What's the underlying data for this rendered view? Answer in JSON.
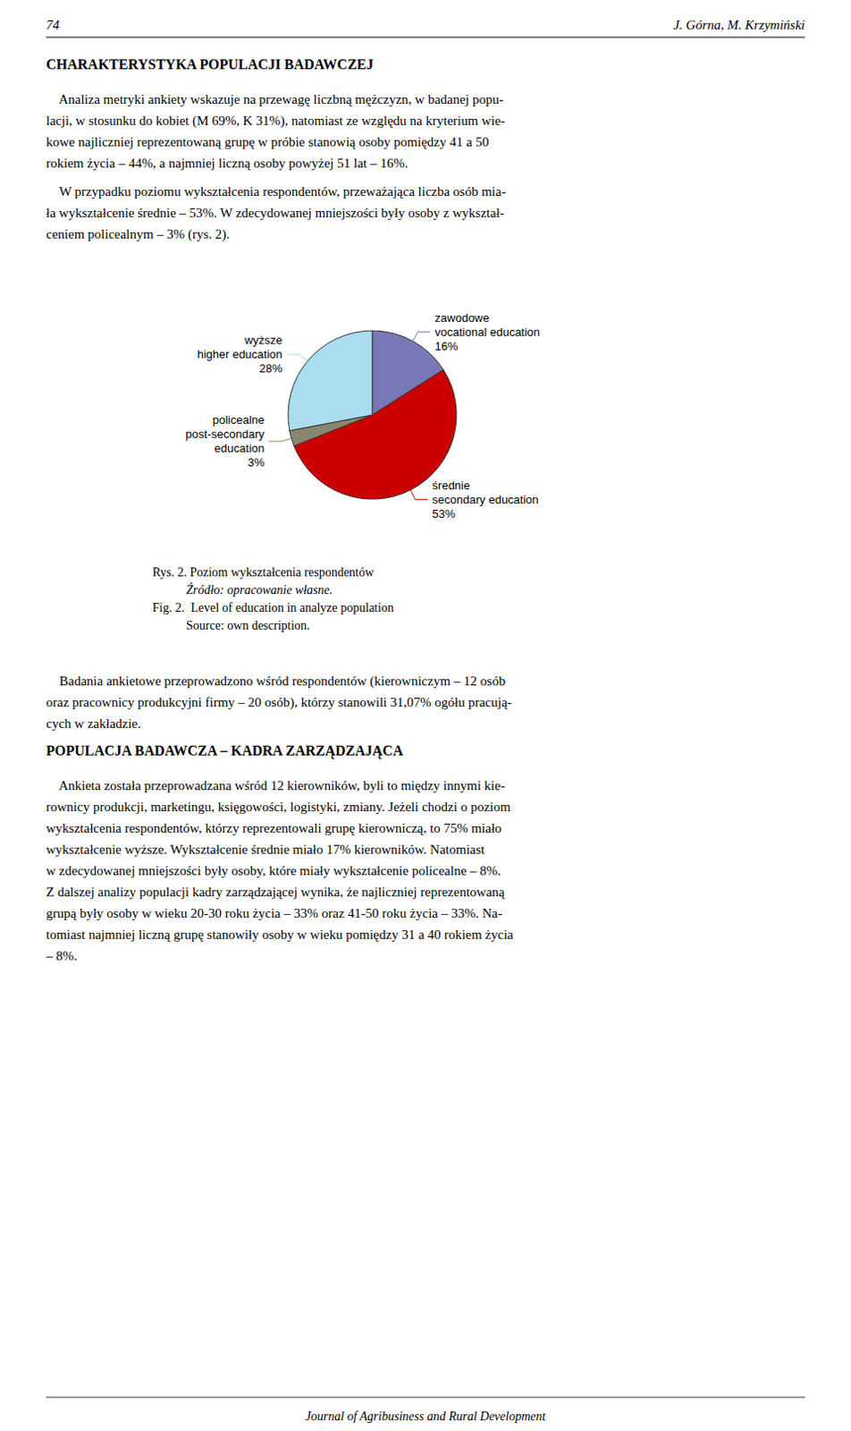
{
  "chart_data": {
    "type": "pie",
    "categories": [
      "zawodowe\nvocational education",
      "średnie\nsecondary education",
      "policealne\npost-secondary\neducation",
      "wyższe\nhigher education"
    ],
    "values": [
      16,
      53,
      3,
      28
    ],
    "value_labels": [
      "16%",
      "53%",
      "3%",
      "28%"
    ],
    "colors": [
      "#7878b8",
      "#cc0000",
      "#888870",
      "#aaddee"
    ],
    "data_labels": true,
    "legend": false,
    "annotations": [
      "74",
      "J. Górna, M. Krzymiński",
      "CHARAKTERYSTYKA POPULACJI BADAWCZEJ",
      "    Analiza metryki ankiety wskazuje na przewagę liczbną mężczyzn, w badanej popu-",
      "lacji, w stosunku do kobiet (M 69%, K 31%), natomiast ze względu na kryterium wie-",
      "kowe najliczniej reprezentowaną grupę w próbie stanowią osoby pomiędzy 41 a 50",
      "rokiem życia – 44%, a najmniej liczną osoby powyżej 51 lat – 16%.",
      "    W przypadku poziomu wykształcenia respondentów, przeważająca liczba osób mia-",
      "ła wykształcenie średnie – 53%. W zdecydowanej mniejszości były osoby z wykształ-",
      "ceniem policealnym – 3% (rys. 2).",
      "Rys. 2. Poziom wykształcenia respondentów",
      "Źródło: opracowanie własne.",
      "Fig. 2.  Level of education in analyze population",
      "Source: own description.",
      "    Badania ankietowe przeprowadzono wśród respondentów (kierowniczym – 12 osób",
      "oraz pracownicy produkcyjni firmy – 20 osób), którzy stanowili 31,07% ogółu pracują-",
      "cych w zakładzie.",
      "POPULACJA BADAWCZA – KADRA ZARZĄDZAJĄCA",
      "    Ankieta została przeprowadzana wśród 12 kierowników, byli to między innymi kie-",
      "rownicy produkcji, marketingu, księgowości, logistyki, zmiany. Jeżeli chodzi o poziom",
      "wykształcenia respondentów, którzy reprezentowali grupę kierowniczą, to 75% miało",
      "wykształcenie wyższe. Wykształcenie średnie miało 17% kierowników. Natomiast",
      "w zdecydowanej mniejszości były osoby, które miały wykształcenie policealne – 8%.",
      "Z dalszej analizy populacji kadry zarządzającej wynika, że najliczniej reprezentowaną",
      "grupą były osoby w wieku 20-30 roku życia – 33% oraz 41-50 roku życia – 33%. Na-",
      "tomiast najmniej liczną grupę stanowiły osoby w wieku pomiędzy 31 a 40 rokiem życia",
      "– 8%.",
      "Journal of Agribusiness and Rural Development"
    ]
  }
}
